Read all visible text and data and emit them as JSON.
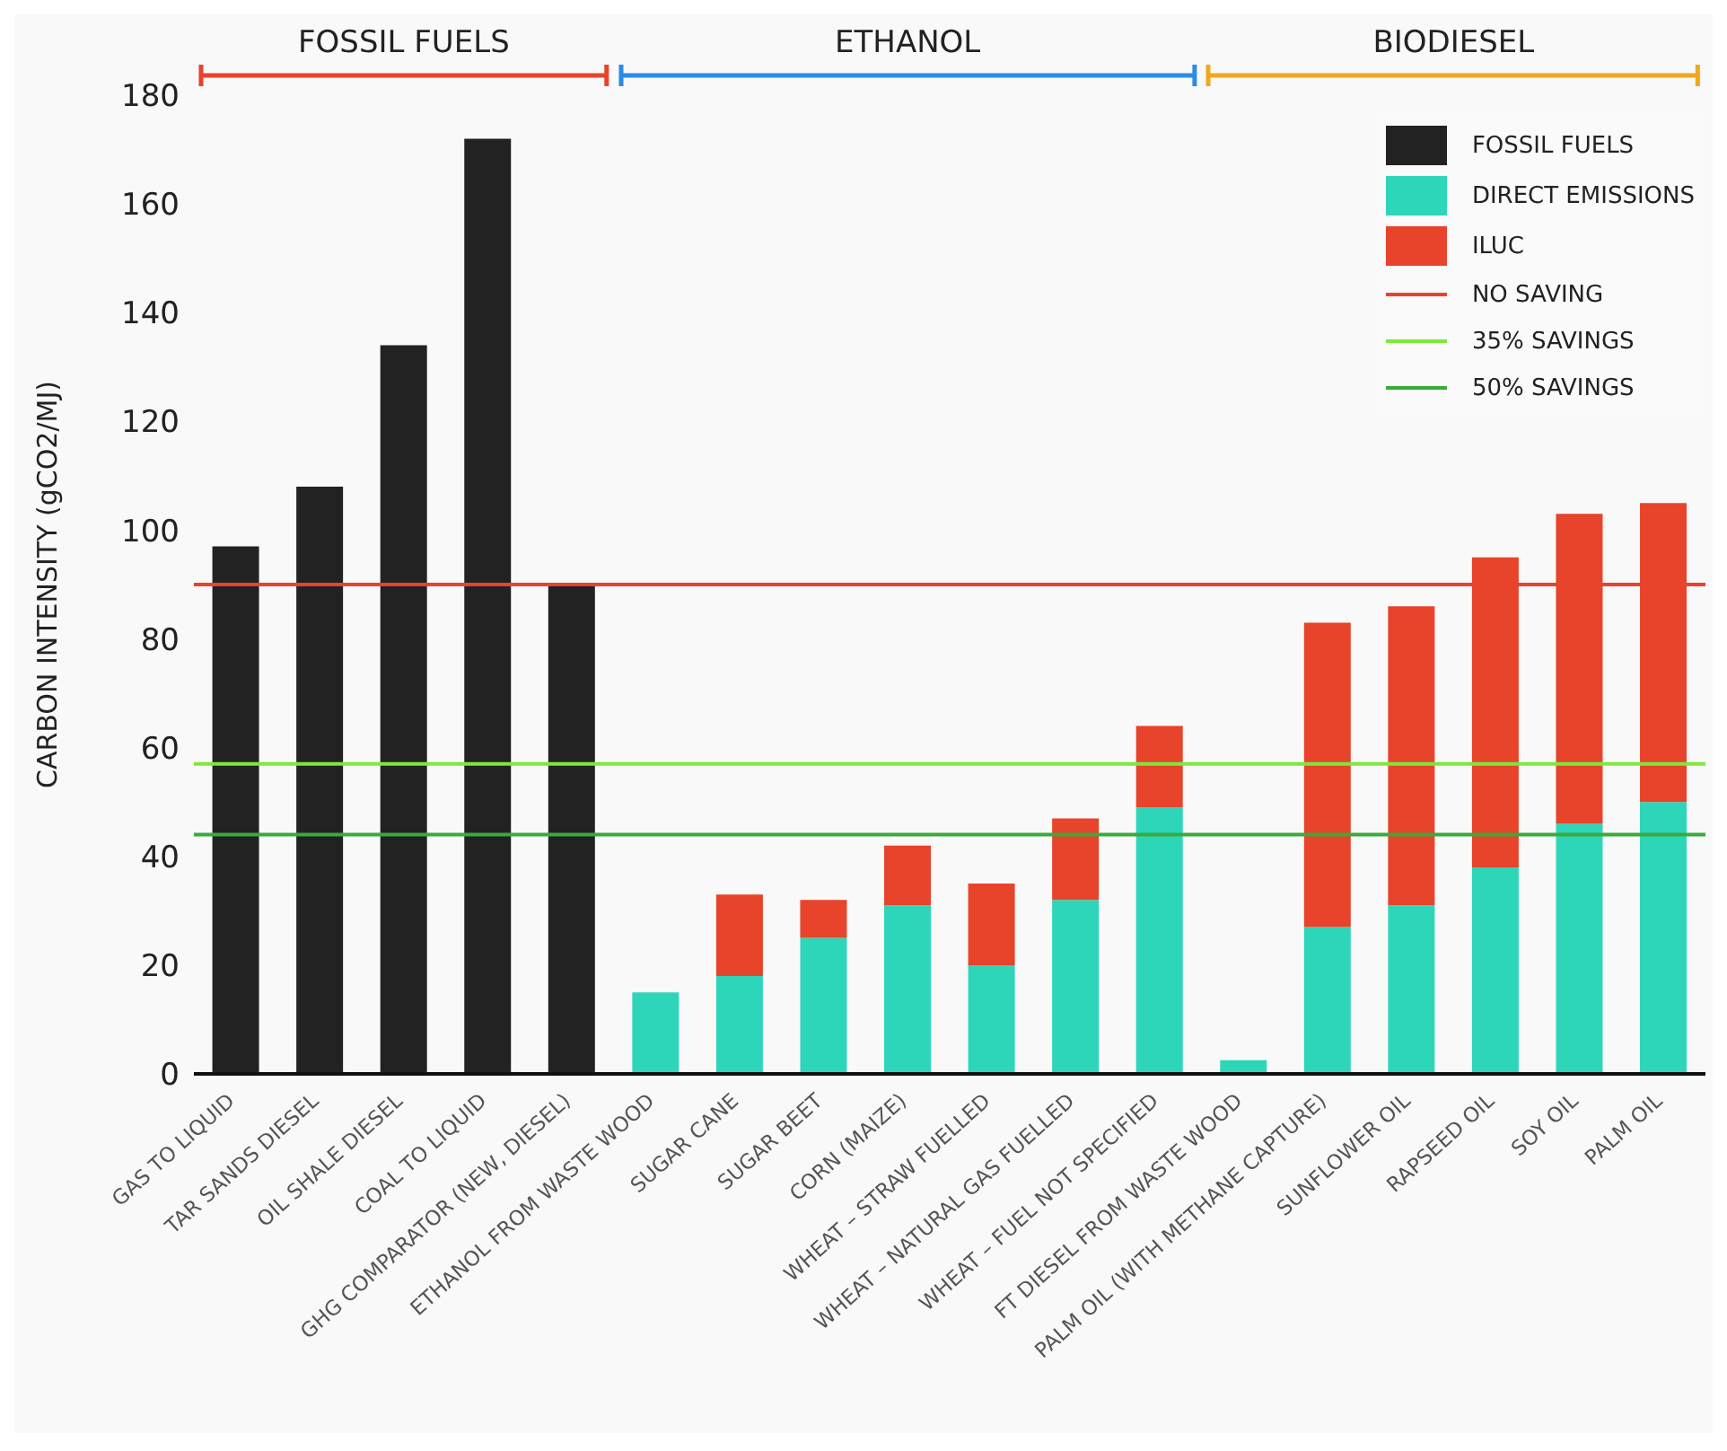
{
  "chart_data": {
    "type": "bar",
    "stacked": true,
    "ylabel": "CARBON INTENSITY (gCO2/MJ)",
    "categories": [
      "GAS TO LIQUID",
      "TAR SANDS DIESEL",
      "OIL SHALE DIESEL",
      "COAL TO LIQUID",
      "GHG COMPARATOR (NEW, DIESEL)",
      "ETHANOL FROM WASTE WOOD",
      "SUGAR CANE",
      "SUGAR BEET",
      "CORN (MAIZE)",
      "WHEAT – STRAW FUELLED",
      "WHEAT – NATURAL GAS FUELLED",
      "WHEAT – FUEL NOT SPECIFIED",
      "FT DIESEL FROM WASTE WOOD",
      "PALM OIL (WITH METHANE CAPTURE)",
      "SUNFLOWER OIL",
      "RAPSEED OIL",
      "SOY OIL",
      "PALM OIL"
    ],
    "series": [
      {
        "name": "FOSSIL FUELS",
        "color": "#222222",
        "values": [
          97,
          108,
          134,
          172,
          90,
          null,
          null,
          null,
          null,
          null,
          null,
          null,
          null,
          null,
          null,
          null,
          null,
          null
        ]
      },
      {
        "name": "DIRECT EMISSIONS",
        "color": "#2ed6b9",
        "values": [
          null,
          null,
          null,
          null,
          null,
          15,
          18,
          25,
          31,
          20,
          32,
          49,
          2.5,
          27,
          31,
          38,
          46,
          50
        ]
      },
      {
        "name": "ILUC",
        "color": "#e8432b",
        "values": [
          null,
          null,
          null,
          null,
          null,
          null,
          15,
          7,
          11,
          15,
          15,
          15,
          null,
          56,
          55,
          57,
          57,
          55
        ]
      }
    ],
    "ref_lines": [
      {
        "axis": "y",
        "value": 44,
        "label": "50% SAVINGS",
        "color": "#3aaa3a"
      },
      {
        "axis": "y",
        "value": 57,
        "label": "35% SAVINGS",
        "color": "#7ee83a"
      },
      {
        "axis": "y",
        "value": 90,
        "label": "NO SAVING",
        "color": "#e8432b"
      }
    ],
    "annotations": [
      "FOSSIL FUELS",
      "ETHANOL",
      "BIODIESEL"
    ],
    "ylim": [
      0,
      180
    ],
    "yticks": [
      0,
      20,
      40,
      60,
      80,
      100,
      120,
      140,
      160,
      180
    ],
    "legend": "top right"
  }
}
